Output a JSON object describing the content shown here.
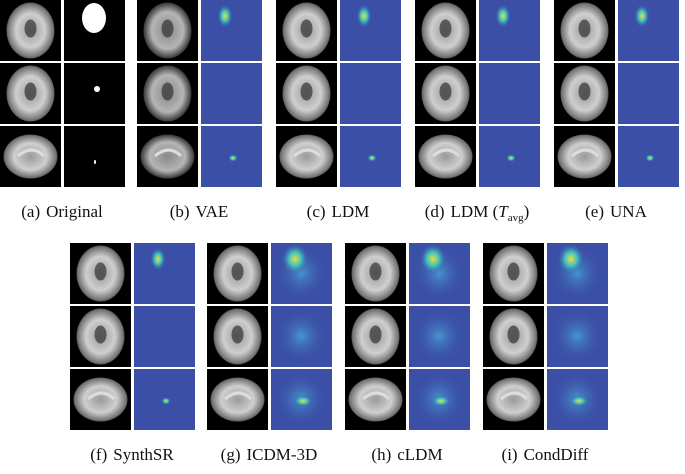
{
  "panels": [
    {
      "label": "(a)",
      "name": "Original"
    },
    {
      "label": "(b)",
      "name": "VAE"
    },
    {
      "label": "(c)",
      "name": "LDM"
    },
    {
      "label": "(d)",
      "name": "LDM (",
      "math": "T",
      "sub": "avg",
      "end": ")"
    },
    {
      "label": "(e)",
      "name": "UNA"
    },
    {
      "label": "(f)",
      "name": "SynthSR"
    },
    {
      "label": "(g)",
      "name": "ICDM-3D"
    },
    {
      "label": "(h)",
      "name": "cLDM"
    },
    {
      "label": "(i)",
      "name": "CondDiff"
    }
  ]
}
